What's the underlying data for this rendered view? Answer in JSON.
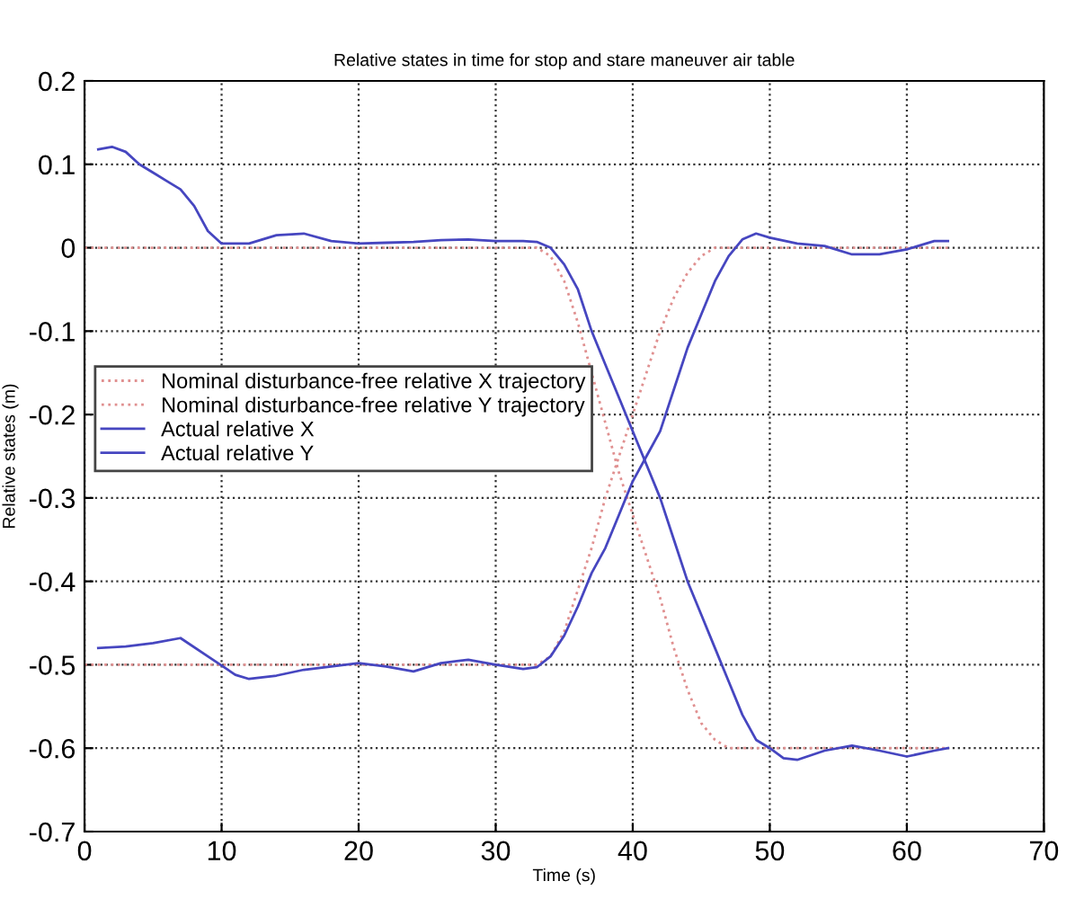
{
  "chart_data": {
    "type": "line",
    "title": "Relative states in time for stop and stare maneuver air table",
    "xlabel": "Time (s)",
    "ylabel": "Relative states (m)",
    "xlim": [
      0,
      70
    ],
    "xticks": [
      0,
      10,
      20,
      30,
      40,
      50,
      60,
      70
    ],
    "ylim": [
      -0.7,
      0.2
    ],
    "yticks": [
      -0.7,
      -0.6,
      -0.5,
      -0.4,
      -0.3,
      -0.2,
      -0.1,
      0,
      0.1,
      0.2
    ],
    "grid": true,
    "legend": "left",
    "series": [
      {
        "name": "Nominal disturbance-free relative X trajectory",
        "color": "#e09090",
        "line_style": "dotted",
        "x": [
          0,
          33,
          34,
          35,
          36,
          37,
          38,
          39,
          40,
          41,
          42,
          43,
          44,
          45,
          46,
          47,
          63
        ],
        "values": [
          0,
          0,
          -0.01,
          -0.04,
          -0.09,
          -0.15,
          -0.21,
          -0.27,
          -0.32,
          -0.37,
          -0.42,
          -0.48,
          -0.53,
          -0.57,
          -0.59,
          -0.6,
          -0.6
        ]
      },
      {
        "name": "Nominal disturbance-free relative Y trajectory",
        "color": "#e09090",
        "line_style": "dotted",
        "x": [
          0,
          33,
          34,
          35,
          36,
          37,
          38,
          39,
          40,
          41,
          42,
          43,
          44,
          45,
          46,
          63
        ],
        "values": [
          -0.5,
          -0.5,
          -0.49,
          -0.46,
          -0.41,
          -0.36,
          -0.3,
          -0.25,
          -0.2,
          -0.15,
          -0.1,
          -0.06,
          -0.03,
          -0.01,
          0,
          0
        ]
      },
      {
        "name": "Actual relative X",
        "color": "#4646c0",
        "line_style": "solid",
        "x": [
          1,
          2,
          3,
          4,
          5,
          6,
          7,
          8,
          9,
          10,
          12,
          14,
          16,
          18,
          20,
          22,
          24,
          26,
          28,
          30,
          32,
          33,
          34,
          35,
          36,
          37,
          38,
          39,
          40,
          41,
          42,
          43,
          44,
          45,
          46,
          47,
          48,
          49,
          50,
          51,
          52,
          54,
          56,
          58,
          60,
          62,
          63
        ],
        "values": [
          0.118,
          0.121,
          0.115,
          0.1,
          0.09,
          0.08,
          0.07,
          0.05,
          0.02,
          0.005,
          0.005,
          0.015,
          0.017,
          0.008,
          0.005,
          0.006,
          0.007,
          0.009,
          0.01,
          0.008,
          0.008,
          0.007,
          0.0,
          -0.02,
          -0.05,
          -0.1,
          -0.14,
          -0.18,
          -0.22,
          -0.26,
          -0.3,
          -0.35,
          -0.4,
          -0.44,
          -0.48,
          -0.52,
          -0.56,
          -0.59,
          -0.6,
          -0.612,
          -0.614,
          -0.603,
          -0.597,
          -0.603,
          -0.61,
          -0.603,
          -0.6
        ]
      },
      {
        "name": "Actual relative Y",
        "color": "#4646c0",
        "line_style": "solid",
        "x": [
          1,
          3,
          5,
          7,
          9,
          11,
          12,
          14,
          16,
          18,
          20,
          22,
          24,
          26,
          28,
          30,
          32,
          33,
          34,
          35,
          36,
          37,
          38,
          39,
          40,
          41,
          42,
          43,
          44,
          45,
          46,
          47,
          48,
          49,
          50,
          52,
          54,
          56,
          58,
          60,
          62,
          63
        ],
        "values": [
          -0.48,
          -0.478,
          -0.474,
          -0.468,
          -0.49,
          -0.512,
          -0.517,
          -0.513,
          -0.506,
          -0.502,
          -0.498,
          -0.502,
          -0.508,
          -0.498,
          -0.494,
          -0.5,
          -0.505,
          -0.503,
          -0.49,
          -0.465,
          -0.43,
          -0.39,
          -0.36,
          -0.32,
          -0.28,
          -0.25,
          -0.22,
          -0.17,
          -0.12,
          -0.08,
          -0.04,
          -0.01,
          0.01,
          0.017,
          0.012,
          0.005,
          0.002,
          -0.008,
          -0.008,
          -0.002,
          0.008,
          0.008
        ]
      }
    ]
  }
}
